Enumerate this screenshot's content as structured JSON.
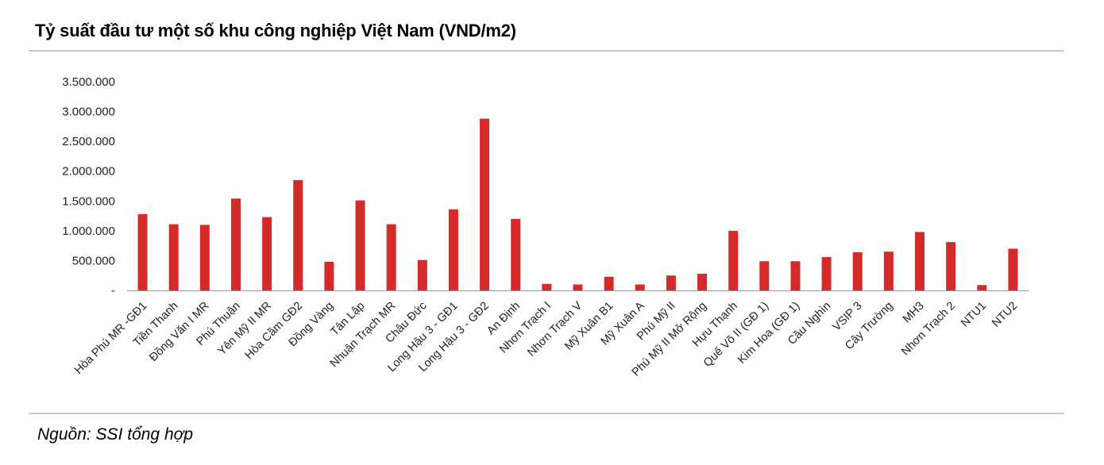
{
  "header": {
    "title": "Tỷ suất đầu tư một số khu công nghiệp Việt Nam (VND/m2)"
  },
  "footer": {
    "source": "Nguồn: SSI tổng hợp"
  },
  "chart_data": {
    "type": "bar",
    "title": "Tỷ suất đầu tư một số khu công nghiệp Việt Nam (VND/m2)",
    "xlabel": "",
    "ylabel": "",
    "ylim": [
      0,
      3500000
    ],
    "y_ticks": [
      {
        "value": 0,
        "label": "-"
      },
      {
        "value": 500000,
        "label": "500.000"
      },
      {
        "value": 1000000,
        "label": "1.000.000"
      },
      {
        "value": 1500000,
        "label": "1.500.000"
      },
      {
        "value": 2000000,
        "label": "2.000.000"
      },
      {
        "value": 2500000,
        "label": "2.500.000"
      },
      {
        "value": 3000000,
        "label": "3.000.000"
      },
      {
        "value": 3500000,
        "label": "3.500.000"
      }
    ],
    "grid": false,
    "bar_color": "#d42a2a",
    "categories": [
      "Hòa Phú MR -GĐ1",
      "Tiền Thanh",
      "Đồng Văn I MR",
      "Phú Thuận",
      "Yên Mỹ II MR",
      "Hòa Cầm GĐ2",
      "Đồng Vàng",
      "Tân Lập",
      "Nhuận Trạch MR",
      "Châu Đức",
      "Long Hậu 3 - GĐ1",
      "Long Hậu 3 - GĐ2",
      "An Định",
      "Nhơn Trạch I",
      "Nhơn Trạch V",
      "Mỹ Xuân B1",
      "Mỹ Xuân A",
      "Phú Mỹ II",
      "Phú Mỹ II Mở Rộng",
      "Hựu Thạnh",
      "Quế Võ II (GĐ 1)",
      "Kim Hoa (GĐ 1)",
      "Cầu Nghìn",
      "VSIP 3",
      "Cây Trường",
      "MH3",
      "Nhơn Trạch 2",
      "NTU1",
      "NTU2"
    ],
    "values": [
      1280000,
      1110000,
      1100000,
      1540000,
      1230000,
      1850000,
      480000,
      1510000,
      1110000,
      510000,
      1360000,
      2880000,
      1200000,
      110000,
      100000,
      230000,
      100000,
      250000,
      280000,
      1000000,
      490000,
      490000,
      560000,
      640000,
      650000,
      980000,
      810000,
      90000,
      700000
    ]
  }
}
